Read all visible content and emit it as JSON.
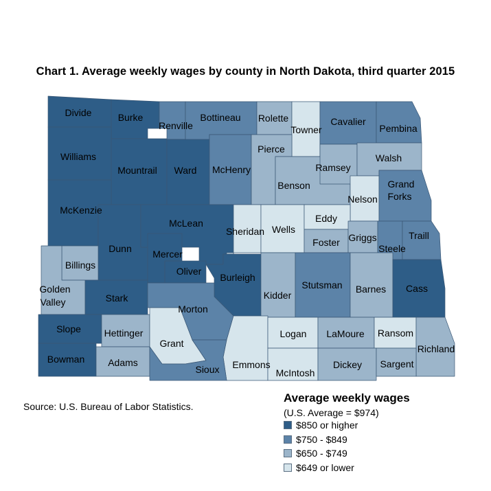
{
  "title": "Chart 1. Average weekly wages by county in North Dakota, third quarter 2015",
  "source": "Source: U.S. Bureau of Labor Statistics.",
  "legend": {
    "title": "Average weekly wages",
    "subtitle": "(U.S. Average = $974)",
    "items": [
      {
        "label": "$850 or higher",
        "color": "#2e5d87"
      },
      {
        "label": "$750 - $849",
        "color": "#5c83a8"
      },
      {
        "label": "$650 - $749",
        "color": "#9cb5ca"
      },
      {
        "label": "$649 or lower",
        "color": "#d6e5ec"
      }
    ]
  },
  "counties": {
    "divide": {
      "label": "Divide",
      "level": 0
    },
    "burke": {
      "label": "Burke",
      "level": 0
    },
    "renville": {
      "label": "Renville",
      "level": 1
    },
    "bottineau": {
      "label": "Bottineau",
      "level": 1
    },
    "rolette": {
      "label": "Rolette",
      "level": 2
    },
    "towner": {
      "label": "Towner",
      "level": 3
    },
    "cavalier": {
      "label": "Cavalier",
      "level": 1
    },
    "pembina": {
      "label": "Pembina",
      "level": 1
    },
    "williams": {
      "label": "Williams",
      "level": 0
    },
    "mountrail": {
      "label": "Mountrail",
      "level": 0
    },
    "ward": {
      "label": "Ward",
      "level": 0
    },
    "mchenry": {
      "label": "McHenry",
      "level": 1
    },
    "pierce": {
      "label": "Pierce",
      "level": 2
    },
    "benson": {
      "label": "Benson",
      "level": 2
    },
    "ramsey": {
      "label": "Ramsey",
      "level": 2
    },
    "walsh": {
      "label": "Walsh",
      "level": 2
    },
    "nelson": {
      "label": "Nelson",
      "level": 3
    },
    "grand_forks": {
      "label": "Grand Forks",
      "level": 1
    },
    "mckenzie": {
      "label": "McKenzie",
      "level": 0
    },
    "dunn": {
      "label": "Dunn",
      "level": 0
    },
    "mclean": {
      "label": "McLean",
      "level": 0
    },
    "mercer": {
      "label": "Mercer",
      "level": 0
    },
    "oliver": {
      "label": "Oliver",
      "level": 0
    },
    "sheridan": {
      "label": "Sheridan",
      "level": 3
    },
    "wells": {
      "label": "Wells",
      "level": 3
    },
    "eddy": {
      "label": "Eddy",
      "level": 3
    },
    "foster": {
      "label": "Foster",
      "level": 2
    },
    "griggs": {
      "label": "Griggs",
      "level": 2
    },
    "steele": {
      "label": "Steele",
      "level": 1
    },
    "traill": {
      "label": "Traill",
      "level": 1
    },
    "billings": {
      "label": "Billings",
      "level": 2
    },
    "golden_valley": {
      "label": "Golden Valley",
      "level": 2
    },
    "stark": {
      "label": "Stark",
      "level": 0
    },
    "burleigh": {
      "label": "Burleigh",
      "level": 0
    },
    "kidder": {
      "label": "Kidder",
      "level": 2
    },
    "stutsman": {
      "label": "Stutsman",
      "level": 1
    },
    "barnes": {
      "label": "Barnes",
      "level": 2
    },
    "cass": {
      "label": "Cass",
      "level": 0
    },
    "morton": {
      "label": "Morton",
      "level": 1
    },
    "slope": {
      "label": "Slope",
      "level": 0
    },
    "hettinger": {
      "label": "Hettinger",
      "level": 2
    },
    "grant": {
      "label": "Grant",
      "level": 3
    },
    "emmons": {
      "label": "Emmons",
      "level": 3
    },
    "logan": {
      "label": "Logan",
      "level": 3
    },
    "lamoure": {
      "label": "LaMoure",
      "level": 2
    },
    "ransom": {
      "label": "Ransom",
      "level": 3
    },
    "richland": {
      "label": "Richland",
      "level": 2
    },
    "bowman": {
      "label": "Bowman",
      "level": 0
    },
    "adams": {
      "label": "Adams",
      "level": 2
    },
    "sioux": {
      "label": "Sioux",
      "level": 1
    },
    "mcintosh": {
      "label": "McIntosh",
      "level": 3
    },
    "dickey": {
      "label": "Dickey",
      "level": 2
    },
    "sargent": {
      "label": "Sargent",
      "level": 2
    }
  }
}
